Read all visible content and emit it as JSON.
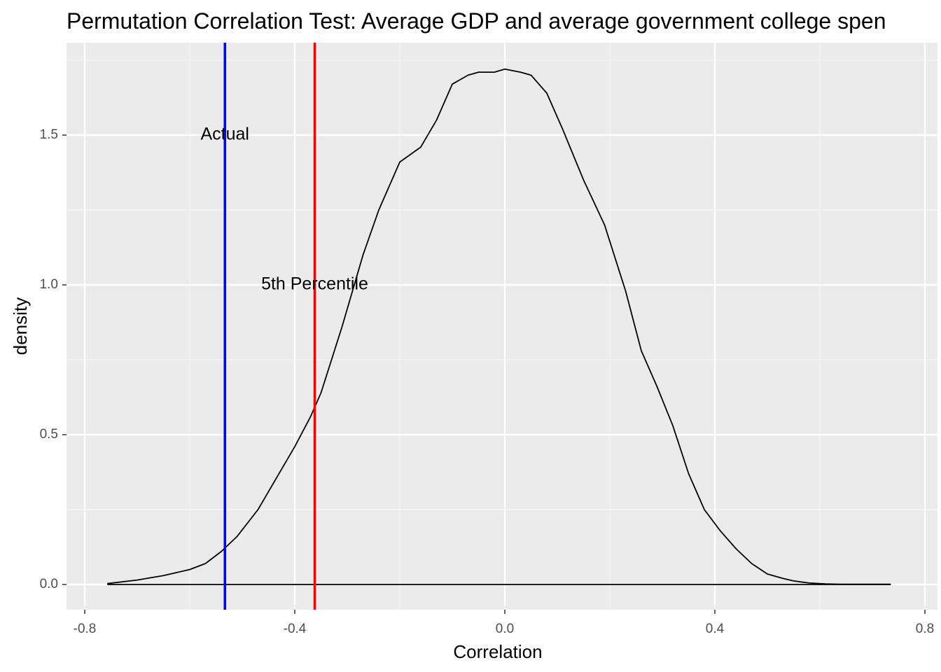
{
  "chart_data": {
    "type": "area",
    "title": "Permutation Correlation Test: Average GDP and average government college spen",
    "xlabel": "Correlation",
    "ylabel": "density",
    "xlim": [
      -0.8,
      0.8
    ],
    "ylim": [
      0,
      1.75
    ],
    "x_ticks": [
      -0.8,
      -0.4,
      0.0,
      0.4,
      0.8
    ],
    "x_tick_labels": [
      "-0.8",
      "-0.4",
      "0.0",
      "0.4",
      "0.8"
    ],
    "y_ticks": [
      0.0,
      0.5,
      1.0,
      1.5
    ],
    "y_tick_labels": [
      "0.0",
      "0.5",
      "1.0",
      "1.5"
    ],
    "grid": true,
    "colors": {
      "panel_background": "#ebebeb",
      "grid_major": "#ffffff",
      "grid_minor": "#f5f5f5",
      "density_line": "#000000",
      "actual_line": "#0000ff",
      "percentile_line": "#ff0000"
    },
    "density_curve": {
      "x": [
        -0.757,
        -0.7,
        -0.65,
        -0.6,
        -0.57,
        -0.54,
        -0.51,
        -0.47,
        -0.43,
        -0.4,
        -0.37,
        -0.35,
        -0.31,
        -0.27,
        -0.24,
        -0.2,
        -0.16,
        -0.13,
        -0.1,
        -0.07,
        -0.05,
        -0.02,
        0.0,
        0.03,
        0.05,
        0.08,
        0.11,
        0.15,
        0.19,
        0.23,
        0.26,
        0.29,
        0.32,
        0.35,
        0.38,
        0.41,
        0.44,
        0.47,
        0.5,
        0.53,
        0.55,
        0.58,
        0.61,
        0.64,
        0.68,
        0.735
      ],
      "y": [
        0.003,
        0.015,
        0.03,
        0.05,
        0.07,
        0.11,
        0.16,
        0.25,
        0.37,
        0.46,
        0.56,
        0.64,
        0.86,
        1.1,
        1.25,
        1.41,
        1.46,
        1.55,
        1.67,
        1.7,
        1.71,
        1.71,
        1.72,
        1.71,
        1.7,
        1.64,
        1.52,
        1.35,
        1.2,
        0.98,
        0.78,
        0.66,
        0.53,
        0.37,
        0.25,
        0.18,
        0.12,
        0.07,
        0.035,
        0.02,
        0.012,
        0.005,
        0.002,
        0.001,
        0.001,
        0.001
      ]
    },
    "vlines": [
      {
        "label": "Actual",
        "x": -0.533,
        "color": "#0000ff",
        "label_y": 1.5
      },
      {
        "label": "5th Percentile",
        "x": -0.362,
        "color": "#ff0000",
        "label_y": 1.0
      }
    ]
  }
}
